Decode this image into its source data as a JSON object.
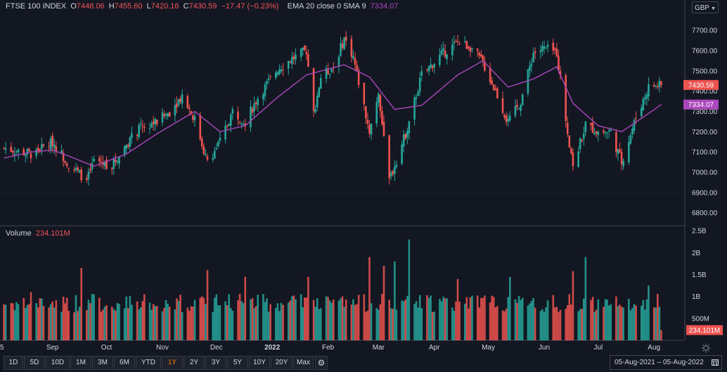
{
  "header": {
    "symbol": "FTSE 100 INDEX",
    "o_label": "O",
    "o_value": "7448.06",
    "h_label": "H",
    "h_value": "7455.60",
    "l_label": "L",
    "l_value": "7420.16",
    "c_label": "C",
    "c_value": "7430.59",
    "change": "−17.47 (−0.23%)",
    "indicator": "EMA 20 close 0 SMA 9",
    "indicator_value": "7334.07",
    "currency": "GBP"
  },
  "volume_legend": {
    "label": "Volume",
    "value": "234.101M"
  },
  "timeframes": [
    "1D",
    "5D",
    "10D",
    "1M",
    "3M",
    "6M",
    "YTD",
    "1Y",
    "2Y",
    "3Y",
    "5Y",
    "10Y",
    "20Y",
    "Max"
  ],
  "active_timeframe": "1Y",
  "date_range": {
    "start": "05-Aug-2021",
    "sep": "–",
    "end": "05-Aug-2022"
  },
  "colors": {
    "up": "#26a69a",
    "down": "#ef5350",
    "ema": "#ab47bc",
    "background": "#131722",
    "grid": "#2a2e39",
    "text": "#d1d4dc",
    "active": "#f57c00"
  },
  "chart_data": [
    {
      "type": "candlestick",
      "title": "FTSE 100 INDEX",
      "x_ticks": [
        "5",
        "Sep",
        "Oct",
        "Nov",
        "Dec",
        "2022",
        "Feb",
        "Mar",
        "Apr",
        "May",
        "Jun",
        "Jul",
        "Aug"
      ],
      "y_ticks": [
        "6800.00",
        "6900.00",
        "7000.00",
        "7100.00",
        "7200.00",
        "7300.00",
        "7400.00",
        "7500.00",
        "7600.00",
        "7700.00"
      ],
      "ylim": [
        6740,
        7780
      ],
      "last_price": "7430.59",
      "last_price_num": 7430.59,
      "ema_label": "7334.07",
      "ema_value": 7334.07,
      "series_anchors": [
        [
          "2021-08-05",
          7120
        ],
        [
          "2021-08-20",
          7090
        ],
        [
          "2021-09-01",
          7150
        ],
        [
          "2021-09-10",
          7040
        ],
        [
          "2021-09-20",
          6960
        ],
        [
          "2021-09-24",
          7060
        ],
        [
          "2021-10-04",
          7030
        ],
        [
          "2021-10-12",
          7140
        ],
        [
          "2021-10-20",
          7220
        ],
        [
          "2021-10-29",
          7250
        ],
        [
          "2021-11-05",
          7300
        ],
        [
          "2021-11-12",
          7380
        ],
        [
          "2021-11-19",
          7260
        ],
        [
          "2021-11-26",
          7050
        ],
        [
          "2021-12-03",
          7150
        ],
        [
          "2021-12-10",
          7300
        ],
        [
          "2021-12-17",
          7250
        ],
        [
          "2021-12-24",
          7370
        ],
        [
          "2022-01-04",
          7510
        ],
        [
          "2022-01-12",
          7560
        ],
        [
          "2022-01-20",
          7600
        ],
        [
          "2022-01-24",
          7290
        ],
        [
          "2022-01-28",
          7470
        ],
        [
          "2022-02-04",
          7520
        ],
        [
          "2022-02-10",
          7660
        ],
        [
          "2022-02-15",
          7570
        ],
        [
          "2022-02-24",
          7200
        ],
        [
          "2022-03-01",
          7400
        ],
        [
          "2022-03-07",
          6960
        ],
        [
          "2022-03-16",
          7190
        ],
        [
          "2022-03-25",
          7480
        ],
        [
          "2022-04-05",
          7580
        ],
        [
          "2022-04-14",
          7640
        ],
        [
          "2022-04-21",
          7620
        ],
        [
          "2022-04-28",
          7540
        ],
        [
          "2022-05-06",
          7380
        ],
        [
          "2022-05-12",
          7240
        ],
        [
          "2022-05-19",
          7350
        ],
        [
          "2022-05-26",
          7590
        ],
        [
          "2022-06-01",
          7610
        ],
        [
          "2022-06-08",
          7590
        ],
        [
          "2022-06-14",
          7200
        ],
        [
          "2022-06-17",
          7040
        ],
        [
          "2022-06-24",
          7230
        ],
        [
          "2022-07-01",
          7200
        ],
        [
          "2022-07-08",
          7200
        ],
        [
          "2022-07-14",
          7050
        ],
        [
          "2022-07-22",
          7270
        ],
        [
          "2022-07-29",
          7420
        ],
        [
          "2022-08-05",
          7430
        ]
      ],
      "ema_anchors": [
        [
          "2021-08-05",
          7070
        ],
        [
          "2021-08-20",
          7100
        ],
        [
          "2021-09-01",
          7110
        ],
        [
          "2021-09-10",
          7080
        ],
        [
          "2021-09-24",
          7030
        ],
        [
          "2021-10-12",
          7090
        ],
        [
          "2021-10-29",
          7190
        ],
        [
          "2021-11-19",
          7300
        ],
        [
          "2021-12-03",
          7200
        ],
        [
          "2021-12-17",
          7230
        ],
        [
          "2022-01-04",
          7370
        ],
        [
          "2022-01-20",
          7480
        ],
        [
          "2022-02-10",
          7530
        ],
        [
          "2022-02-24",
          7470
        ],
        [
          "2022-03-10",
          7310
        ],
        [
          "2022-03-25",
          7330
        ],
        [
          "2022-04-14",
          7480
        ],
        [
          "2022-04-28",
          7550
        ],
        [
          "2022-05-12",
          7420
        ],
        [
          "2022-05-26",
          7460
        ],
        [
          "2022-06-08",
          7520
        ],
        [
          "2022-06-17",
          7340
        ],
        [
          "2022-07-01",
          7230
        ],
        [
          "2022-07-14",
          7200
        ],
        [
          "2022-07-29",
          7290
        ],
        [
          "2022-08-05",
          7334.07
        ]
      ]
    },
    {
      "type": "bar",
      "title": "Volume",
      "y_ticks": [
        "500M",
        "1B",
        "1.5B",
        "2B",
        "2.5B"
      ],
      "ylim": [
        0,
        2600
      ],
      "unit": "M",
      "last_volume_label": "234.101M",
      "last_volume": 234,
      "typical_volume": 850,
      "spikes": [
        [
          "2021-08-20",
          1100
        ],
        [
          "2021-09-17",
          1650
        ],
        [
          "2021-10-22",
          1050
        ],
        [
          "2021-11-26",
          1600
        ],
        [
          "2021-12-17",
          1450
        ],
        [
          "2022-01-21",
          1450
        ],
        [
          "2022-02-24",
          1900
        ],
        [
          "2022-03-04",
          1700
        ],
        [
          "2022-03-10",
          1800
        ],
        [
          "2022-03-18",
          2300
        ],
        [
          "2022-04-14",
          1400
        ],
        [
          "2022-05-13",
          1450
        ],
        [
          "2022-06-17",
          1580
        ],
        [
          "2022-06-24",
          1900
        ],
        [
          "2022-07-29",
          1250
        ]
      ]
    }
  ]
}
